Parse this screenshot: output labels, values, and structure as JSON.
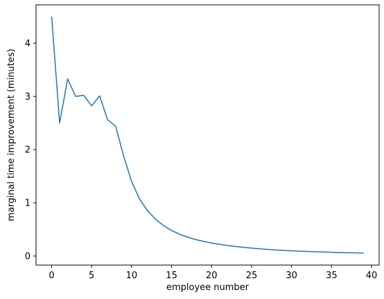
{
  "chart_data": {
    "type": "line",
    "title": "",
    "xlabel": "employee number",
    "ylabel": "marginal time improvement (minutes)",
    "xlim": [
      -1.95,
      40.95
    ],
    "ylim": [
      -0.17,
      4.72
    ],
    "xticks": [
      0,
      5,
      10,
      15,
      20,
      25,
      30,
      35,
      40
    ],
    "yticks": [
      0,
      1,
      2,
      3,
      4
    ],
    "grid": false,
    "legend": "none",
    "series": [
      {
        "color": "#1f77b4",
        "x": [
          0,
          1,
          2,
          3,
          4,
          5,
          6,
          7,
          8,
          9,
          10,
          11,
          12,
          13,
          14,
          15,
          16,
          17,
          18,
          19,
          20,
          21,
          22,
          23,
          24,
          25,
          26,
          27,
          28,
          29,
          30,
          31,
          32,
          33,
          34,
          35,
          36,
          37,
          38,
          39
        ],
        "y": [
          4.5,
          2.5,
          3.33,
          3.0,
          3.02,
          2.82,
          3.01,
          2.56,
          2.44,
          1.88,
          1.4,
          1.07,
          0.85,
          0.69,
          0.57,
          0.48,
          0.41,
          0.355,
          0.31,
          0.275,
          0.245,
          0.22,
          0.198,
          0.18,
          0.163,
          0.149,
          0.136,
          0.125,
          0.115,
          0.106,
          0.099,
          0.092,
          0.086,
          0.08,
          0.075,
          0.07,
          0.066,
          0.062,
          0.059,
          0.056
        ]
      }
    ]
  }
}
